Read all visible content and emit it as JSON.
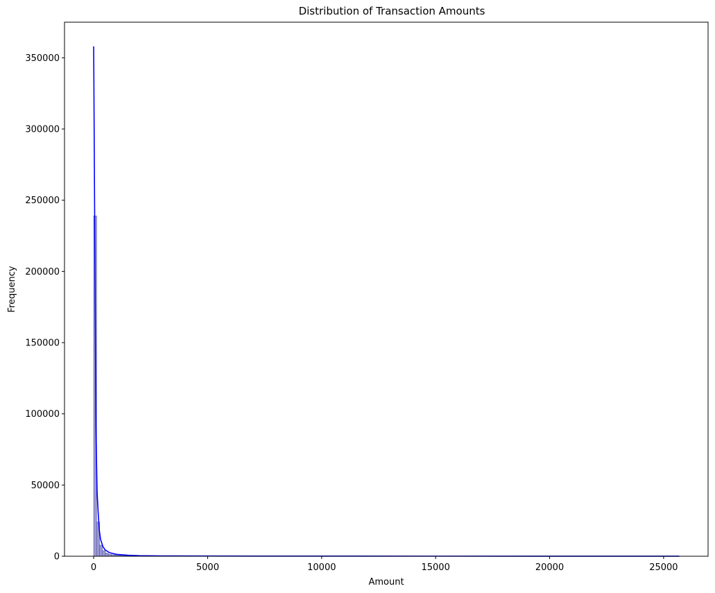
{
  "chart_data": {
    "type": "bar",
    "title": "Distribution of Transaction Amounts",
    "xlabel": "Amount",
    "ylabel": "Frequency",
    "xlim": [
      -1280,
      26950
    ],
    "ylim": [
      0,
      375000
    ],
    "x_ticks": [
      0,
      5000,
      10000,
      15000,
      20000,
      25000
    ],
    "y_ticks": [
      0,
      50000,
      100000,
      150000,
      200000,
      250000,
      300000,
      350000
    ],
    "grid": false,
    "bar_color": "#8080c8",
    "line_color": "#0000ff",
    "bins": {
      "bin_width": 128.5,
      "x_start": 0,
      "counts": [
        239000,
        24000,
        7800,
        3900,
        2200,
        1400,
        1000,
        800,
        650,
        550,
        480,
        430,
        380,
        340,
        300,
        270,
        240,
        210,
        190,
        170,
        150,
        130,
        115,
        100,
        90,
        80,
        70,
        60,
        55,
        50
      ]
    },
    "kde": {
      "x": [
        0,
        50,
        100,
        150,
        200,
        250,
        300,
        400,
        500,
        700,
        1000,
        1500,
        2000,
        3000,
        5000,
        10000,
        15000,
        20000,
        25690
      ],
      "y": [
        358000,
        220000,
        90000,
        45000,
        30000,
        18000,
        12000,
        7000,
        4500,
        2500,
        1300,
        700,
        400,
        250,
        150,
        80,
        60,
        50,
        50
      ]
    }
  }
}
